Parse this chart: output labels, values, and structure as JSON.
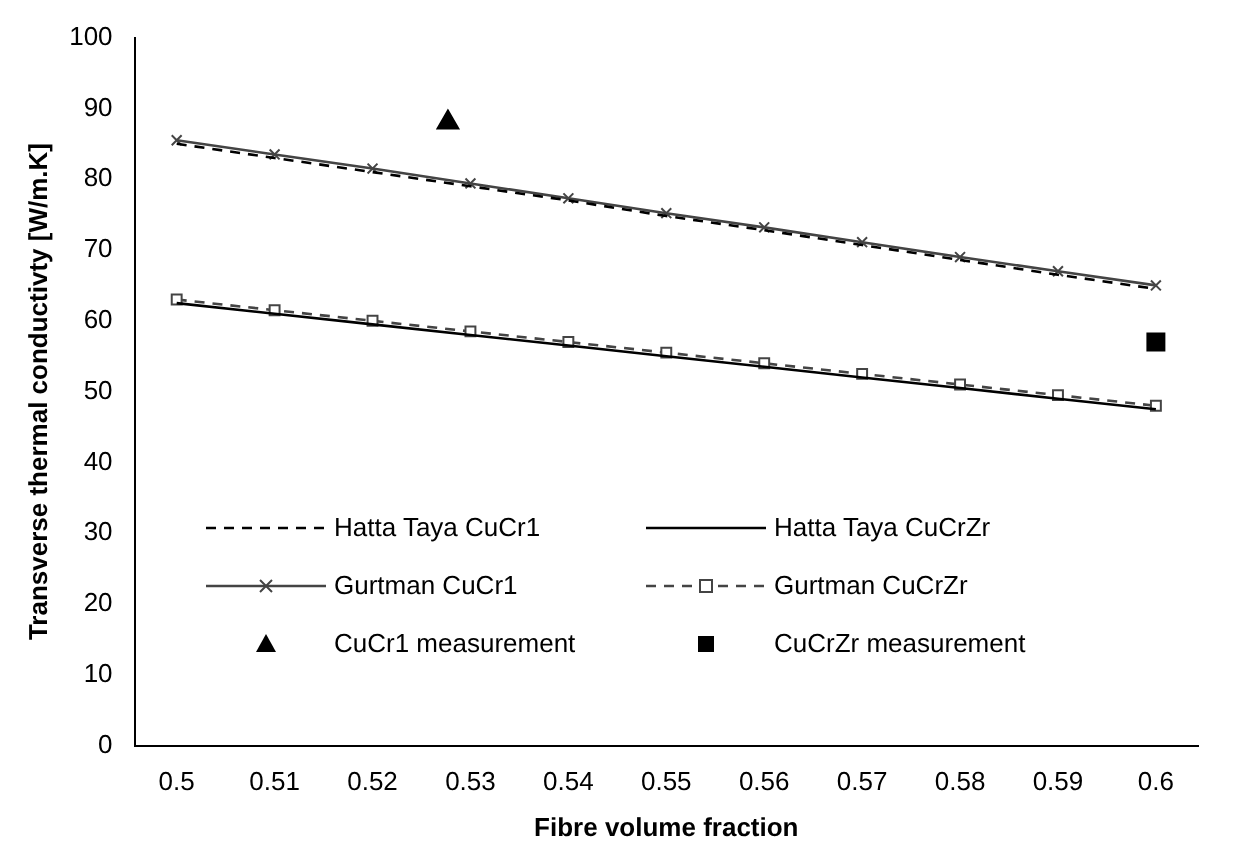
{
  "chart_data": {
    "type": "line",
    "xlabel": "Fibre volume fraction",
    "ylabel": "Transverse thermal conductivty [W/m.K]",
    "x": [
      0.5,
      0.51,
      0.52,
      0.53,
      0.54,
      0.55,
      0.56,
      0.57,
      0.58,
      0.59,
      0.6
    ],
    "xlim": [
      0.4957,
      0.6043
    ],
    "xticks": [
      0.5,
      0.51,
      0.52,
      0.53,
      0.54,
      0.55,
      0.56,
      0.57,
      0.58,
      0.59,
      0.6
    ],
    "ylim": [
      0,
      100
    ],
    "yticks": [
      0,
      10,
      20,
      30,
      40,
      50,
      60,
      70,
      80,
      90,
      100
    ],
    "grid": false,
    "legend": "bottom left",
    "series": [
      {
        "name": "Hatta Taya CuCr1",
        "color": "#000000",
        "line_style": "dashed",
        "marker": "none",
        "values": [
          85,
          83,
          81,
          79,
          77,
          74.8,
          72.8,
          70.7,
          68.6,
          66.5,
          64.5
        ]
      },
      {
        "name": "Hatta Taya CuCrZr",
        "color": "#000000",
        "line_style": "solid",
        "marker": "none",
        "values": [
          62.5,
          61,
          59.5,
          58,
          56.5,
          55,
          53.5,
          52,
          50.5,
          49,
          47.5
        ]
      },
      {
        "name": "Gurtman CuCr1",
        "color": "#444444",
        "line_style": "solid",
        "marker": "cross",
        "values": [
          85.5,
          83.5,
          81.5,
          79.4,
          77.3,
          75.2,
          73.2,
          71.1,
          69,
          67,
          65
        ]
      },
      {
        "name": "Gurtman CuCrZr",
        "color": "#444444",
        "line_style": "dashed",
        "marker": "square",
        "values": [
          63,
          61.5,
          60,
          58.5,
          57,
          55.5,
          54,
          52.5,
          51,
          49.5,
          48
        ]
      },
      {
        "name": "CuCr1 measurement",
        "type": "scatter",
        "color": "#000000",
        "marker": "triangle",
        "x": [
          0.5277
        ],
        "values": [
          88
        ]
      },
      {
        "name": "CuCrZr measurement",
        "type": "scatter",
        "color": "#000000",
        "marker": "square",
        "x": [
          0.6
        ],
        "values": [
          57
        ]
      }
    ]
  }
}
